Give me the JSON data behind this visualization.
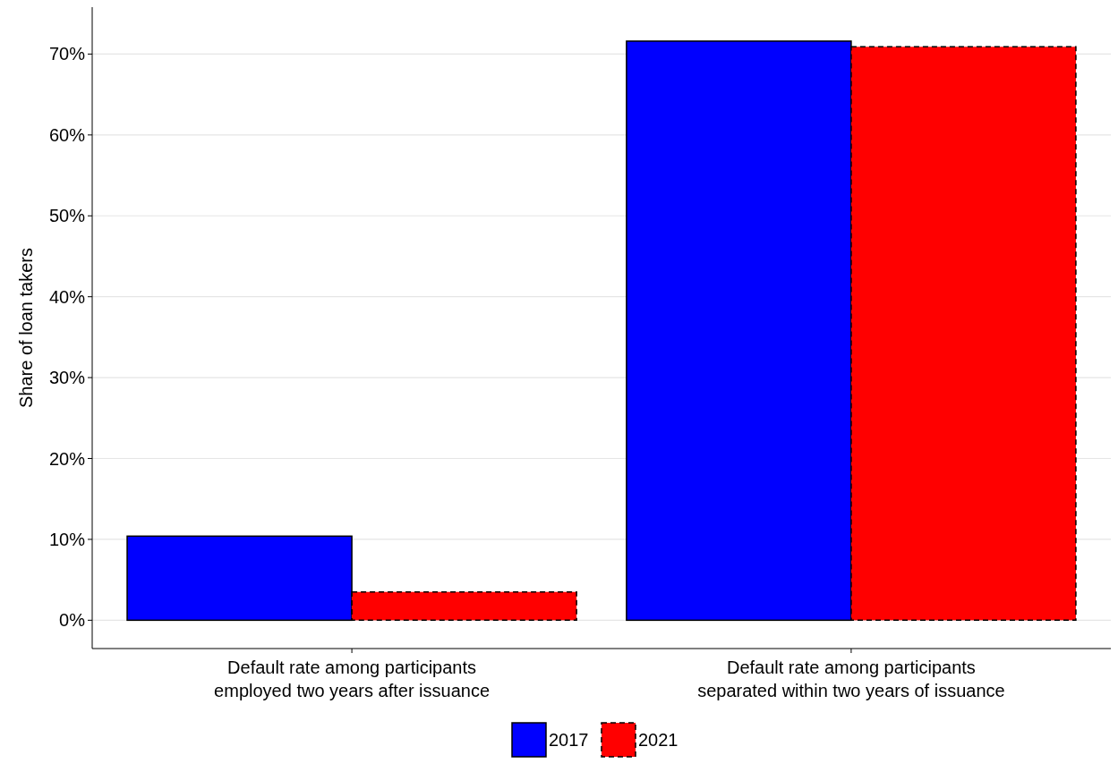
{
  "chart_data": {
    "type": "bar",
    "ylabel": "Share of loan takers",
    "categories": [
      "Default rate among participants\nemployed two years after issuance",
      "Default rate among participants\nseparated within two years of issuance"
    ],
    "series": [
      {
        "name": "2017",
        "color": "#0000ff",
        "values": [
          10.4,
          71.6
        ],
        "line_style": "solid"
      },
      {
        "name": "2021",
        "color": "#ff0000",
        "values": [
          3.5,
          70.9
        ],
        "line_style": "dashed"
      }
    ],
    "ylim": [
      -3.5,
      75.8
    ],
    "yticks": [
      {
        "value": 0,
        "label": "0%"
      },
      {
        "value": 10,
        "label": "10%"
      },
      {
        "value": 20,
        "label": "20%"
      },
      {
        "value": 30,
        "label": "30%"
      },
      {
        "value": 40,
        "label": "40%"
      },
      {
        "value": 50,
        "label": "50%"
      },
      {
        "value": 60,
        "label": "60%"
      },
      {
        "value": 70,
        "label": "70%"
      }
    ],
    "grid": "y",
    "legend": "bottom"
  }
}
